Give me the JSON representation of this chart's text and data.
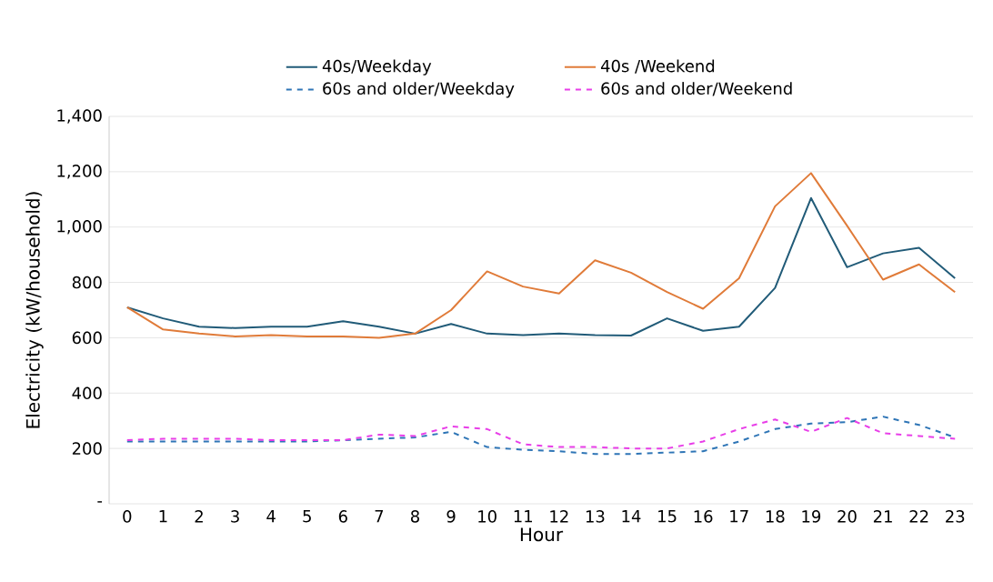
{
  "chart_data": {
    "type": "line",
    "xlabel": "Hour",
    "ylabel": "Electricity (kW/household)",
    "x": [
      0,
      1,
      2,
      3,
      4,
      5,
      6,
      7,
      8,
      9,
      10,
      11,
      12,
      13,
      14,
      15,
      16,
      17,
      18,
      19,
      20,
      21,
      22,
      23
    ],
    "xlim": [
      -0.5,
      23.5
    ],
    "xticks": [
      0,
      1,
      2,
      3,
      4,
      5,
      6,
      7,
      8,
      9,
      10,
      11,
      12,
      13,
      14,
      15,
      16,
      17,
      18,
      19,
      20,
      21,
      22,
      23
    ],
    "ylim": [
      0,
      1400
    ],
    "yticks": [
      {
        "value": 0,
        "label": "-"
      },
      {
        "value": 200,
        "label": "200"
      },
      {
        "value": 400,
        "label": "400"
      },
      {
        "value": 600,
        "label": "600"
      },
      {
        "value": 800,
        "label": "800"
      },
      {
        "value": 1000,
        "label": "1,000"
      },
      {
        "value": 1200,
        "label": "1,200"
      },
      {
        "value": 1400,
        "label": "1,400"
      }
    ],
    "grid": "y",
    "legend": "top",
    "marker": "none",
    "series": [
      {
        "name": "40s/Weekday",
        "color": "#215b78",
        "line_style": "solid",
        "values": [
          710,
          670,
          640,
          635,
          640,
          640,
          660,
          640,
          615,
          650,
          615,
          610,
          615,
          610,
          608,
          670,
          625,
          640,
          780,
          1105,
          855,
          905,
          925,
          815
        ]
      },
      {
        "name": "40s /Weekend",
        "color": "#e07b39",
        "line_style": "solid",
        "values": [
          710,
          630,
          615,
          605,
          610,
          605,
          605,
          600,
          615,
          700,
          840,
          785,
          760,
          880,
          835,
          765,
          705,
          815,
          1075,
          1195,
          1005,
          810,
          865,
          765
        ]
      },
      {
        "name": "60s and older/Weekday",
        "color": "#2e75b6",
        "line_style": "dashed",
        "values": [
          225,
          225,
          225,
          225,
          225,
          225,
          230,
          235,
          240,
          260,
          205,
          195,
          190,
          180,
          180,
          185,
          190,
          225,
          270,
          290,
          295,
          315,
          285,
          240
        ]
      },
      {
        "name": "60s and older/Weekend",
        "color": "#e83ee8",
        "line_style": "dashed",
        "values": [
          230,
          235,
          235,
          235,
          230,
          230,
          230,
          250,
          245,
          280,
          270,
          215,
          205,
          205,
          200,
          200,
          225,
          270,
          305,
          260,
          310,
          255,
          245,
          235
        ]
      }
    ]
  }
}
